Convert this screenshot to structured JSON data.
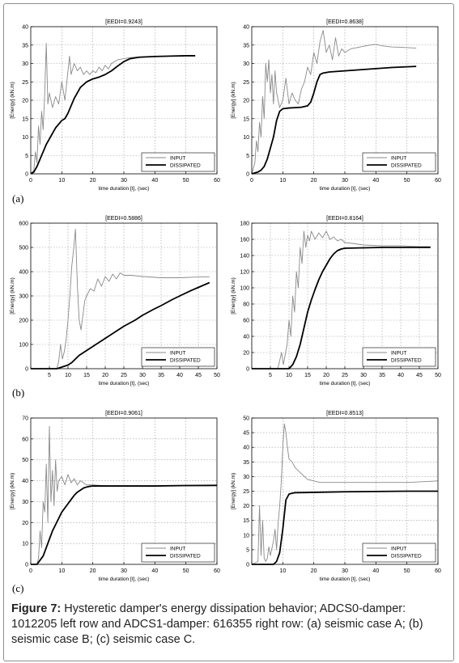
{
  "caption": {
    "prefix": "Figure 7:",
    "text": "Hysteretic damper's energy dissipation behavior; ADCS0-damper: 1012205 left row and ADCS1-damper: 616355 right row: (a) seismic case A; (b) seismic case B; (c) seismic case C."
  },
  "row_labels": [
    "(a)",
    "(b)",
    "(c)"
  ],
  "chart_data": [
    {
      "type": "line",
      "title": "[EEDI=0.9243]",
      "xlabel": "time duration [t], (sec)",
      "ylabel": "[Energy] (kN.m)",
      "xlim": [
        0,
        60
      ],
      "ylim": [
        0,
        40
      ],
      "xticks": [
        0,
        10,
        20,
        30,
        40,
        50,
        60
      ],
      "yticks": [
        0,
        5,
        10,
        15,
        20,
        25,
        30,
        35,
        40
      ],
      "xtick_labels": [
        "0",
        "10",
        "20",
        "30",
        "40",
        "50",
        "60"
      ],
      "grid": true,
      "legend": "lower-right",
      "series": [
        {
          "name": "INPUT",
          "color": "#8a8a8a",
          "x": [
            0,
            1,
            1.5,
            2,
            2.5,
            3,
            3.5,
            4,
            4.5,
            5,
            5.5,
            6,
            7,
            8,
            9,
            10,
            11,
            12,
            12.5,
            13,
            14,
            15,
            16,
            17,
            18,
            19,
            20,
            21,
            22,
            23,
            24,
            25,
            26,
            28,
            30,
            32,
            35,
            40,
            45,
            50,
            53
          ],
          "y": [
            0,
            1,
            6,
            3,
            13,
            8,
            17,
            12,
            22,
            35.5,
            19,
            22,
            18,
            21,
            19,
            25,
            20,
            28,
            32,
            27,
            30,
            28,
            29,
            27,
            28,
            27,
            28,
            27.5,
            29,
            28,
            29.5,
            28.5,
            30,
            31,
            31.3,
            31.6,
            31.8,
            31.9,
            32,
            32.1,
            32.1
          ]
        },
        {
          "name": "DISSIPATED",
          "color": "#000000",
          "x": [
            0,
            1,
            2,
            3,
            4,
            5,
            6,
            7,
            8,
            9,
            10,
            11,
            12,
            13,
            14,
            15,
            16,
            18,
            20,
            22,
            24,
            26,
            28,
            30,
            32,
            35,
            40,
            45,
            50,
            53
          ],
          "y": [
            0,
            0.5,
            2,
            4,
            6,
            8,
            9.5,
            11,
            12.5,
            13.5,
            14.5,
            15,
            16.5,
            18.5,
            20.5,
            22,
            23.5,
            25,
            25.8,
            26.3,
            27,
            28,
            29.3,
            30.5,
            31.3,
            31.7,
            31.9,
            32,
            32.1,
            32.1
          ]
        }
      ]
    },
    {
      "type": "line",
      "title": "[EEDI=0.8638]",
      "xlabel": "time duration [t], (sec)",
      "ylabel": "[Energy] (kN.m)",
      "xlim": [
        0,
        60
      ],
      "ylim": [
        0,
        40
      ],
      "xticks": [
        0,
        10,
        20,
        30,
        40,
        50,
        60
      ],
      "yticks": [
        0,
        5,
        10,
        15,
        20,
        25,
        30,
        35,
        40
      ],
      "xtick_labels": [
        "0",
        "10",
        "20",
        "30",
        "40",
        "50",
        "60"
      ],
      "grid": true,
      "legend": "lower-right",
      "series": [
        {
          "name": "INPUT",
          "color": "#8a8a8a",
          "x": [
            0,
            1,
            1.5,
            2,
            2.5,
            3,
            3.5,
            4,
            4.5,
            5,
            5.5,
            6,
            6.5,
            7,
            7.5,
            8,
            9,
            10,
            11,
            12,
            13,
            14,
            15,
            16,
            17,
            18,
            19,
            20,
            21,
            22,
            23,
            24,
            25,
            26,
            27,
            28,
            29,
            30,
            32,
            35,
            38,
            40,
            42,
            45,
            48,
            50,
            53
          ],
          "y": [
            0,
            3,
            9,
            6,
            14,
            10,
            21,
            15,
            30,
            25,
            31,
            22,
            27,
            19,
            28,
            22,
            18,
            20,
            26,
            19,
            22,
            20,
            19,
            23,
            25,
            29,
            27,
            33,
            30,
            36,
            39,
            33,
            35,
            31,
            37,
            32,
            34,
            33,
            34,
            34.5,
            35,
            35.2,
            34.8,
            34.5,
            34.4,
            34.3,
            34.2
          ]
        },
        {
          "name": "DISSIPATED",
          "color": "#000000",
          "x": [
            0,
            2,
            3,
            4,
            5,
            6,
            7,
            8,
            9,
            10,
            12,
            14,
            16,
            18,
            19,
            20,
            21,
            22,
            23,
            25,
            30,
            35,
            40,
            45,
            50,
            53
          ],
          "y": [
            0,
            0.5,
            1,
            2,
            4,
            7,
            10,
            14.5,
            17,
            17.7,
            17.9,
            18,
            18.1,
            18.5,
            19.5,
            22,
            25,
            27,
            27.4,
            27.7,
            28,
            28.3,
            28.6,
            28.9,
            29.1,
            29.2
          ]
        }
      ]
    },
    {
      "type": "line",
      "title": "[EEDI=0.5886]",
      "xlabel": "time duration [t], (sec)",
      "ylabel": "[Energy] (kN.m)",
      "xlim": [
        0,
        50
      ],
      "ylim": [
        0,
        600
      ],
      "xticks": [
        0,
        5,
        10,
        15,
        20,
        25,
        30,
        35,
        40,
        45,
        50
      ],
      "yticks": [
        0,
        100,
        200,
        300,
        400,
        500,
        600
      ],
      "xtick_labels": [
        "",
        "5",
        "10",
        "15",
        "20",
        "25",
        "30",
        "35",
        "40",
        "45",
        "50"
      ],
      "grid": true,
      "legend": "lower-right",
      "series": [
        {
          "name": "INPUT",
          "color": "#8a8a8a",
          "x": [
            0,
            5,
            6,
            7,
            7.5,
            8,
            8.5,
            9,
            9.5,
            10,
            10.5,
            11,
            11.5,
            12,
            12.5,
            13,
            13.5,
            14,
            14.5,
            15,
            16,
            17,
            18,
            19,
            20,
            21,
            22,
            23,
            24,
            25,
            27,
            30,
            35,
            40,
            45,
            48
          ],
          "y": [
            0,
            0,
            0,
            0,
            30,
            100,
            40,
            70,
            120,
            200,
            300,
            420,
            490,
            575,
            350,
            200,
            160,
            220,
            280,
            300,
            330,
            320,
            370,
            340,
            380,
            360,
            390,
            370,
            395,
            385,
            385,
            380,
            375,
            375,
            378,
            378
          ]
        },
        {
          "name": "DISSIPATED",
          "color": "#000000",
          "x": [
            0,
            5,
            7,
            8,
            9,
            10,
            11,
            12,
            13,
            14,
            15,
            17,
            20,
            23,
            25,
            28,
            30,
            33,
            35,
            38,
            40,
            43,
            45,
            48
          ],
          "y": [
            0,
            0,
            0,
            5,
            10,
            15,
            25,
            40,
            55,
            65,
            75,
            95,
            125,
            155,
            175,
            200,
            220,
            245,
            260,
            285,
            300,
            322,
            335,
            355
          ]
        }
      ]
    },
    {
      "type": "line",
      "title": "[EEDI=0.8164]",
      "xlabel": "time duration [t], (sec)",
      "ylabel": "[Energy] (kN.m)",
      "xlim": [
        0,
        50
      ],
      "ylim": [
        0,
        180
      ],
      "xticks": [
        0,
        5,
        10,
        15,
        20,
        25,
        30,
        35,
        40,
        45,
        50
      ],
      "yticks": [
        0,
        20,
        40,
        60,
        80,
        100,
        120,
        140,
        160,
        180
      ],
      "xtick_labels": [
        "",
        "5",
        "10",
        "15",
        "20",
        "25",
        "30",
        "35",
        "40",
        "45",
        "50"
      ],
      "grid": true,
      "legend": "lower-right",
      "series": [
        {
          "name": "INPUT",
          "color": "#8a8a8a",
          "x": [
            0,
            7,
            8,
            8.5,
            9,
            9.5,
            10,
            10.5,
            11,
            11.5,
            12,
            12.5,
            13,
            13.5,
            14,
            14.5,
            15,
            15.5,
            16,
            17,
            18,
            19,
            20,
            21,
            22,
            23,
            24,
            25,
            27,
            30,
            35,
            40,
            45,
            48
          ],
          "y": [
            0,
            0,
            20,
            5,
            18,
            30,
            60,
            40,
            90,
            70,
            120,
            100,
            150,
            130,
            170,
            150,
            165,
            158,
            170,
            160,
            168,
            162,
            170,
            160,
            163,
            158,
            160,
            156,
            155,
            153,
            152,
            152,
            151,
            151
          ]
        },
        {
          "name": "DISSIPATED",
          "color": "#000000",
          "x": [
            0,
            10,
            11,
            12,
            13,
            14,
            15,
            16,
            17,
            18,
            19,
            20,
            21,
            22,
            23,
            24,
            25,
            30,
            35,
            40,
            45,
            48
          ],
          "y": [
            0,
            0,
            5,
            15,
            30,
            50,
            70,
            85,
            98,
            110,
            120,
            128,
            136,
            142,
            146,
            148,
            149,
            149.5,
            150,
            150,
            150,
            150
          ]
        }
      ]
    },
    {
      "type": "line",
      "title": "[EEDI=0.9061]",
      "xlabel": "time duration [t], (sec)",
      "ylabel": "[Energy] (kN.m)",
      "xlim": [
        0,
        60
      ],
      "ylim": [
        0,
        70
      ],
      "xticks": [
        0,
        10,
        20,
        30,
        40,
        50,
        60
      ],
      "yticks": [
        0,
        10,
        20,
        30,
        40,
        50,
        60,
        70
      ],
      "xtick_labels": [
        "0",
        "10",
        "20",
        "30",
        "40",
        "50",
        "60"
      ],
      "grid": true,
      "legend": "lower-right",
      "series": [
        {
          "name": "INPUT",
          "color": "#8a8a8a",
          "x": [
            0,
            2,
            2.5,
            3,
            3.5,
            4,
            4.5,
            5,
            5.5,
            6,
            6.5,
            7,
            7.5,
            8,
            8.5,
            9,
            10,
            11,
            12,
            13,
            14,
            15,
            16,
            18,
            20,
            25,
            30,
            40,
            50,
            60
          ],
          "y": [
            0,
            0,
            3,
            16,
            8,
            30,
            25,
            48,
            20,
            66,
            30,
            45,
            28,
            50,
            35,
            40,
            42,
            38,
            43,
            39,
            41,
            38,
            40,
            38,
            38,
            37.5,
            37.5,
            37.5,
            37.5,
            37.5
          ]
        },
        {
          "name": "DISSIPATED",
          "color": "#000000",
          "x": [
            0,
            2,
            3,
            4,
            5,
            6,
            7,
            8,
            9,
            10,
            11,
            12,
            13,
            14,
            15,
            16,
            17,
            18,
            19,
            20,
            25,
            30,
            40,
            50,
            60
          ],
          "y": [
            0,
            0,
            2,
            4,
            8,
            12,
            16,
            19,
            22,
            25,
            27,
            29,
            31,
            33,
            34.5,
            35.5,
            36.5,
            37,
            37.3,
            37.5,
            37.5,
            37.5,
            37.5,
            37.7,
            37.8
          ]
        }
      ]
    },
    {
      "type": "line",
      "title": "[EEDI=0.8513]",
      "xlabel": "time duration [t], (sec)",
      "ylabel": "[Energy] (kN.m)",
      "xlim": [
        0,
        60
      ],
      "ylim": [
        0,
        50
      ],
      "xticks": [
        0,
        10,
        20,
        30,
        40,
        50,
        60
      ],
      "yticks": [
        0,
        5,
        10,
        15,
        20,
        25,
        30,
        35,
        40,
        45,
        50
      ],
      "xtick_labels": [
        "",
        "10",
        "20",
        "30",
        "40",
        "50",
        "60"
      ],
      "grid": true,
      "legend": "lower-right",
      "series": [
        {
          "name": "INPUT",
          "color": "#8a8a8a",
          "x": [
            0,
            2,
            2.5,
            3,
            3.5,
            4,
            4.5,
            5,
            5.5,
            6,
            7,
            7.5,
            8,
            8.5,
            9,
            9.5,
            10,
            10.5,
            11,
            11.5,
            12,
            13,
            14,
            15,
            16,
            17,
            18,
            20,
            22,
            25,
            30,
            40,
            50,
            60
          ],
          "y": [
            0,
            1,
            20,
            3,
            15,
            2,
            1,
            2,
            6,
            3,
            8,
            12,
            5,
            14,
            20,
            28,
            40,
            48,
            45,
            40,
            36,
            35,
            33,
            32,
            31,
            30,
            29,
            28.5,
            28,
            28,
            28,
            28,
            28,
            28.5
          ]
        },
        {
          "name": "DISSIPATED",
          "color": "#000000",
          "x": [
            0,
            7,
            8,
            9,
            10,
            11,
            12,
            13,
            14,
            15,
            20,
            30,
            40,
            50,
            60
          ],
          "y": [
            0,
            0,
            1,
            4,
            12,
            22,
            24,
            24.3,
            24.5,
            24.5,
            24.6,
            24.8,
            24.9,
            25,
            25
          ]
        }
      ]
    }
  ]
}
